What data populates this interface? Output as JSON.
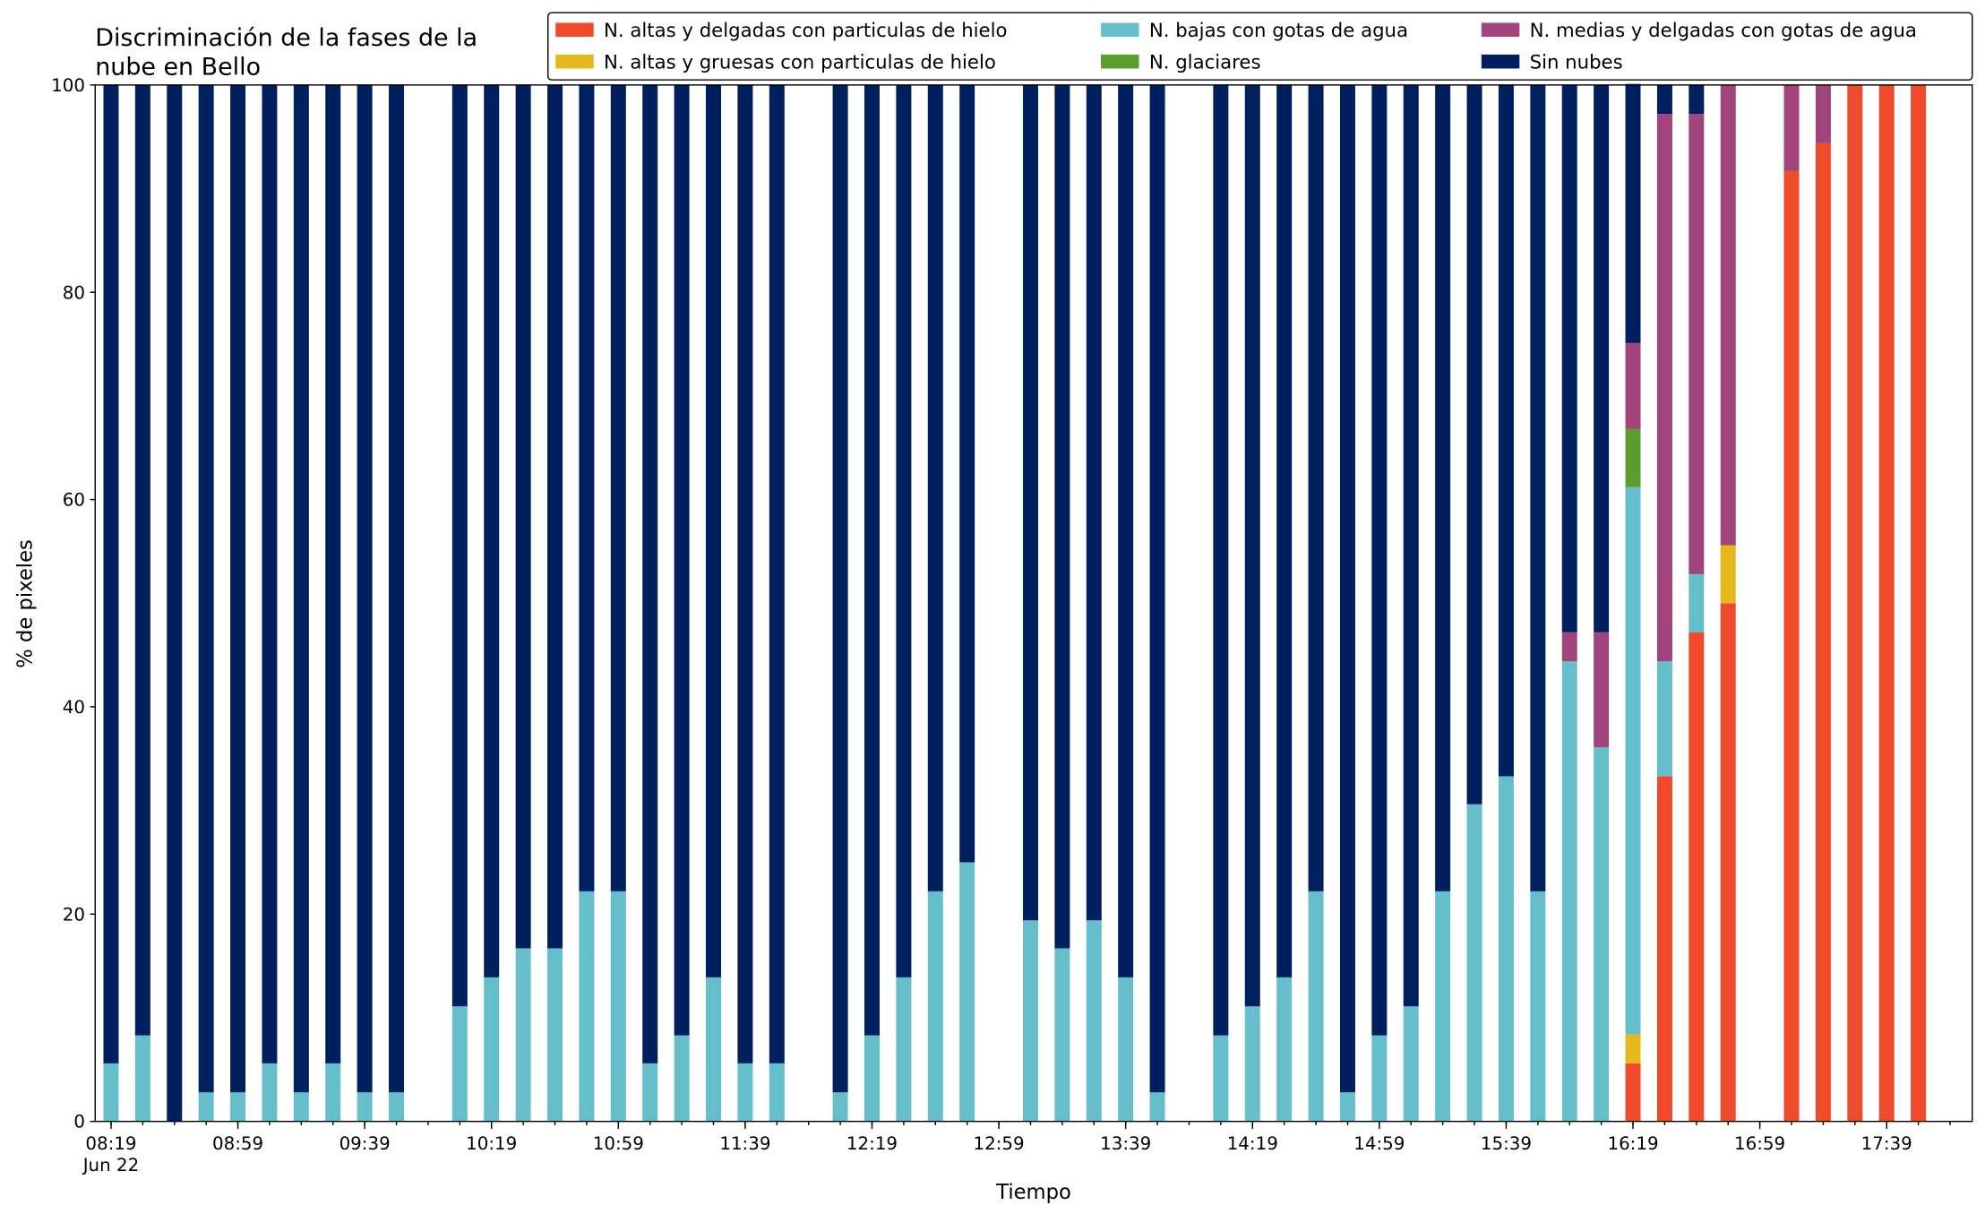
{
  "chart_data": {
    "type": "stacked_bar",
    "title": [
      "Discriminación de la fases de la",
      "nube en Bello"
    ],
    "xlabel": "Tiempo",
    "ylabel": "% de pixeles",
    "x": [
      "08:19",
      "08:29",
      "08:39",
      "08:49",
      "08:59",
      "09:09",
      "09:19",
      "09:29",
      "09:39",
      "09:49",
      "10:09",
      "10:19",
      "10:29",
      "10:39",
      "10:49",
      "10:59",
      "11:09",
      "11:19",
      "11:29",
      "11:39",
      "11:49",
      "12:09",
      "12:19",
      "12:29",
      "12:39",
      "12:49",
      "13:09",
      "13:19",
      "13:29",
      "13:39",
      "13:49",
      "14:09",
      "14:19",
      "14:29",
      "14:39",
      "14:49",
      "14:59",
      "15:09",
      "15:19",
      "15:29",
      "15:39",
      "15:49",
      "15:59",
      "16:09",
      "16:19",
      "16:29",
      "16:39",
      "16:49",
      "17:09",
      "17:19",
      "17:29",
      "17:39",
      "17:49"
    ],
    "xlim": [
      "08:14",
      "18:06"
    ],
    "xticks": [
      "08:19",
      "08:59",
      "09:39",
      "10:19",
      "10:59",
      "11:39",
      "12:19",
      "12:59",
      "13:39",
      "14:19",
      "14:59",
      "15:39",
      "16:19",
      "16:59",
      "17:39"
    ],
    "xtick_date": "Jun 22",
    "ylim": [
      0,
      100
    ],
    "yticks": [
      0,
      20,
      40,
      60,
      80,
      100
    ],
    "legend": "upper right",
    "series": [
      {
        "name": "N. altas y delgadas con particulas de hielo",
        "color": "#ee4a2b",
        "values": [
          0,
          0,
          0,
          0,
          0,
          0,
          0,
          0,
          0,
          0,
          0,
          0,
          0,
          0,
          0,
          0,
          0,
          0,
          0,
          0,
          0,
          0,
          0,
          0,
          0,
          0,
          0,
          0,
          0,
          0,
          0,
          0,
          0,
          0,
          0,
          0,
          0,
          0,
          0,
          0,
          0,
          0,
          0,
          0,
          5.6,
          33.3,
          47.2,
          50,
          91.7,
          94.4,
          100,
          100,
          100
        ]
      },
      {
        "name": "N. altas y gruesas con particulas de hielo",
        "color": "#e6b81c",
        "values": [
          0,
          0,
          0,
          0,
          0,
          0,
          0,
          0,
          0,
          0,
          0,
          0,
          0,
          0,
          0,
          0,
          0,
          0,
          0,
          0,
          0,
          0,
          0,
          0,
          0,
          0,
          0,
          0,
          0,
          0,
          0,
          0,
          0,
          0,
          0,
          0,
          0,
          0,
          0,
          0,
          0,
          0,
          0,
          0,
          2.8,
          0,
          0,
          5.6,
          0,
          0,
          0,
          0,
          0
        ]
      },
      {
        "name": "N. bajas con gotas de agua",
        "color": "#65bfcb",
        "values": [
          5.6,
          8.3,
          0,
          2.8,
          2.8,
          5.6,
          2.8,
          5.6,
          2.8,
          2.8,
          11.1,
          13.9,
          16.7,
          16.7,
          22.2,
          22.2,
          5.6,
          8.3,
          13.9,
          5.6,
          5.6,
          2.8,
          8.3,
          13.9,
          22.2,
          25,
          19.4,
          16.7,
          19.4,
          13.9,
          2.8,
          8.3,
          11.1,
          13.9,
          22.2,
          2.8,
          8.3,
          11.1,
          22.2,
          30.6,
          33.3,
          22.2,
          44.4,
          36.1,
          52.8,
          11.1,
          5.6,
          0,
          0,
          0,
          0,
          0,
          0
        ]
      },
      {
        "name": "N. glaciares",
        "color": "#5c9e2d",
        "values": [
          0,
          0,
          0,
          0,
          0,
          0,
          0,
          0,
          0,
          0,
          0,
          0,
          0,
          0,
          0,
          0,
          0,
          0,
          0,
          0,
          0,
          0,
          0,
          0,
          0,
          0,
          0,
          0,
          0,
          0,
          0,
          0,
          0,
          0,
          0,
          0,
          0,
          0,
          0,
          0,
          0,
          0,
          0,
          0,
          5.6,
          0,
          0,
          0,
          0,
          0,
          0,
          0,
          0
        ]
      },
      {
        "name": "N. medias y delgadas con gotas de agua",
        "color": "#a0447b",
        "values": [
          0,
          0,
          0,
          0,
          0,
          0,
          0,
          0,
          0,
          0,
          0,
          0,
          0,
          0,
          0,
          0,
          0,
          0,
          0,
          0,
          0,
          0,
          0,
          0,
          0,
          0,
          0,
          0,
          0,
          0,
          0,
          0,
          0,
          0,
          0,
          0,
          0,
          0,
          0,
          0,
          0,
          0,
          2.8,
          11.1,
          8.3,
          52.8,
          44.4,
          44.4,
          8.3,
          5.6,
          0,
          0,
          0
        ]
      },
      {
        "name": "Sin nubes",
        "color": "#001f5e",
        "values": [
          94.4,
          91.7,
          100,
          97.2,
          97.2,
          94.4,
          97.2,
          94.4,
          97.2,
          97.2,
          88.9,
          86.1,
          83.3,
          83.3,
          77.8,
          77.8,
          94.4,
          91.7,
          86.1,
          94.4,
          94.4,
          97.2,
          91.7,
          86.1,
          77.8,
          75,
          80.6,
          83.3,
          80.6,
          86.1,
          97.2,
          91.7,
          88.9,
          86.1,
          77.8,
          97.2,
          91.7,
          88.9,
          77.8,
          69.4,
          66.7,
          77.8,
          52.8,
          52.8,
          25,
          2.8,
          2.8,
          0,
          0,
          0,
          0,
          0,
          0
        ]
      }
    ]
  }
}
